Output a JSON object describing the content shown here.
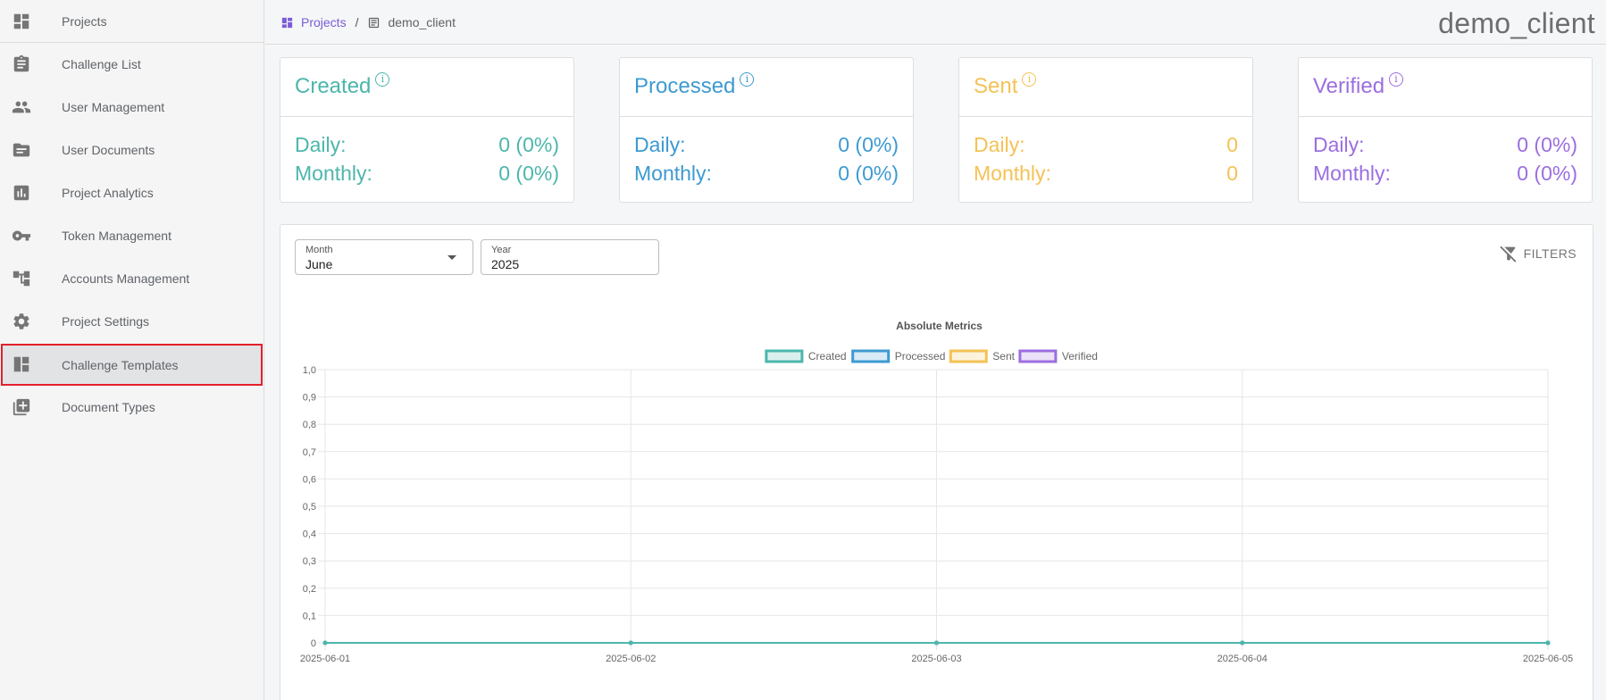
{
  "sidebar": {
    "items": [
      {
        "label": "Projects",
        "icon": "dashboard-icon"
      },
      {
        "label": "Challenge List",
        "icon": "clipboard-icon"
      },
      {
        "label": "User Management",
        "icon": "people-icon"
      },
      {
        "label": "User Documents",
        "icon": "folder-icon"
      },
      {
        "label": "Project Analytics",
        "icon": "bar-chart-icon"
      },
      {
        "label": "Token Management",
        "icon": "key-icon"
      },
      {
        "label": "Accounts Management",
        "icon": "account-tree-icon"
      },
      {
        "label": "Project Settings",
        "icon": "gear-icon"
      },
      {
        "label": "Challenge Templates",
        "icon": "template-icon"
      },
      {
        "label": "Document Types",
        "icon": "document-types-icon"
      }
    ]
  },
  "header": {
    "breadcrumb": {
      "root": "Projects",
      "separator": "/",
      "current": "demo_client"
    },
    "title": "demo_client"
  },
  "cards": [
    {
      "title": "Created",
      "daily_label": "Daily:",
      "daily_value": "0 (0%)",
      "monthly_label": "Monthly:",
      "monthly_value": "0 (0%)",
      "color": "#4db6ac"
    },
    {
      "title": "Processed",
      "daily_label": "Daily:",
      "daily_value": "0 (0%)",
      "monthly_label": "Monthly:",
      "monthly_value": "0 (0%)",
      "color": "#3d9ad1"
    },
    {
      "title": "Sent",
      "daily_label": "Daily:",
      "daily_value": "0",
      "monthly_label": "Monthly:",
      "monthly_value": "0",
      "color": "#f4c255"
    },
    {
      "title": "Verified",
      "daily_label": "Daily:",
      "daily_value": "0 (0%)",
      "monthly_label": "Monthly:",
      "monthly_value": "0 (0%)",
      "color": "#9b6ee0"
    }
  ],
  "filters": {
    "month": {
      "label": "Month",
      "value": "June"
    },
    "year": {
      "label": "Year",
      "value": "2025"
    },
    "button_label": "FILTERS"
  },
  "chart_data": {
    "type": "line",
    "title": "Absolute Metrics",
    "categories": [
      "2025-06-01",
      "2025-06-02",
      "2025-06-03",
      "2025-06-04",
      "2025-06-05"
    ],
    "series": [
      {
        "name": "Created",
        "values": [
          0,
          0,
          0,
          0,
          0
        ],
        "color": "#4db6ac"
      },
      {
        "name": "Processed",
        "values": [
          0,
          0,
          0,
          0,
          0
        ],
        "color": "#3d9ad1"
      },
      {
        "name": "Sent",
        "values": [
          0,
          0,
          0,
          0,
          0
        ],
        "color": "#f4c255"
      },
      {
        "name": "Verified",
        "values": [
          0,
          0,
          0,
          0,
          0
        ],
        "color": "#9b6ee0"
      }
    ],
    "y_ticks": [
      "0",
      "0,1",
      "0,2",
      "0,3",
      "0,4",
      "0,5",
      "0,6",
      "0,7",
      "0,8",
      "0,9",
      "1,0"
    ],
    "ylim": [
      0,
      1
    ],
    "legend": "top",
    "grid": true
  }
}
